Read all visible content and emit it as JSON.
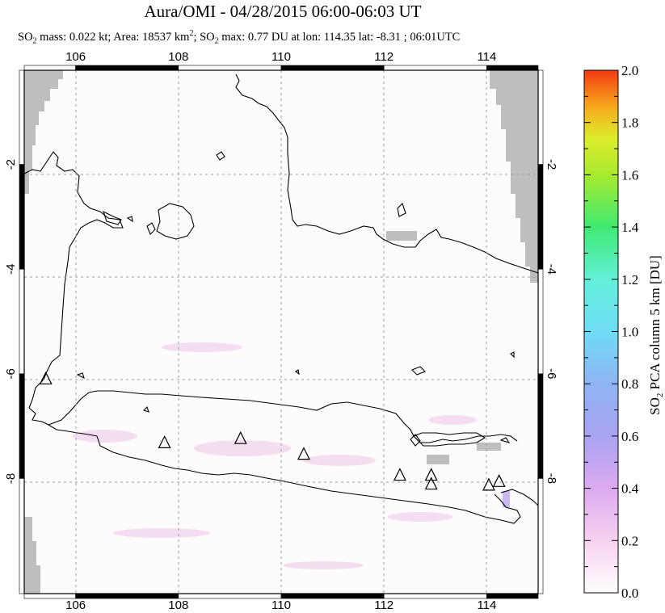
{
  "title": "Aura/OMI - 04/28/2015 06:00-06:03 UT",
  "subtitle": {
    "mass_prefix": "SO",
    "mass_sub": "2",
    "mass_text": " mass: 0.022 kt; Area: 18537 km",
    "area_sup": "2",
    "max_prefix": "; SO",
    "max_sub": "2",
    "max_text": " max: 0.77 DU at lon: 114.35 lat: -8.31 ; 06:01UTC"
  },
  "chart_data": {
    "type": "heatmap",
    "title": "Aura/OMI - 04/28/2015 06:00-06:03 UT",
    "x_ticks": [
      106,
      108,
      110,
      112,
      114
    ],
    "x_tick_labels": [
      "106",
      "108",
      "110",
      "112",
      "114"
    ],
    "y_ticks": [
      -2,
      -4,
      -6,
      -8
    ],
    "y_tick_labels": [
      "-2",
      "-4",
      "-6",
      "-8"
    ],
    "x_range": [
      105,
      115
    ],
    "y_range": [
      -10.2,
      -0.2
    ],
    "grid": true,
    "colorbar": {
      "label_prefix": "SO",
      "label_sub": "2",
      "label_text": " PCA column 5 km [DU]",
      "range": [
        0,
        2
      ],
      "ticks": [
        0.0,
        0.2,
        0.4,
        0.6,
        0.8,
        1.0,
        1.2,
        1.4,
        1.6,
        1.8,
        2.0
      ],
      "tick_labels": [
        "0.0",
        "0.2",
        "0.4",
        "0.6",
        "0.8",
        "1.0",
        "1.2",
        "1.4",
        "1.6",
        "1.8",
        "2.0"
      ],
      "colors": [
        "#ffffff",
        "#f7d2f0",
        "#d9a6f0",
        "#a9a3f2",
        "#6fdcf5",
        "#63f0d8",
        "#3fea72",
        "#7ee83a",
        "#ddec2a",
        "#f7a91d",
        "#f23a12"
      ]
    },
    "volcanoes": [
      {
        "lon": 105.42,
        "lat": -6.1
      },
      {
        "lon": 107.73,
        "lat": -7.32
      },
      {
        "lon": 109.21,
        "lat": -7.24
      },
      {
        "lon": 110.44,
        "lat": -7.54
      },
      {
        "lon": 112.31,
        "lat": -7.94
      },
      {
        "lon": 112.92,
        "lat": -7.94
      },
      {
        "lon": 112.92,
        "lat": -8.11
      },
      {
        "lon": 114.04,
        "lat": -8.13
      },
      {
        "lon": 114.24,
        "lat": -8.06
      }
    ],
    "so2_max": {
      "value": 0.77,
      "lon": 114.35,
      "lat": -8.31
    }
  }
}
